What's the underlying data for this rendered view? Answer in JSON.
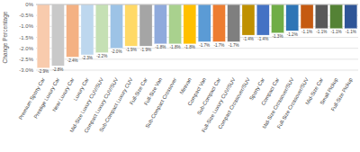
{
  "chart_data": {
    "type": "bar",
    "y_label": "Change Percentage",
    "categories": [
      "Premium Sporty Car",
      "Prestige Luxury Car",
      "Near Luxury Car",
      "Luxury Car",
      "Mid-Size Luxury CUV/SUV",
      "Compact Luxury CUV/SUV",
      "Sub-Compact Luxury CUV",
      "Full-Size Car",
      "Full-Size Van",
      "Sub-Compact Crossover",
      "Minivan",
      "Compact Van",
      "Sub-Compact Car",
      "Full-Size Luxury CUV/SUV",
      "Compact Crossover/SUV",
      "Sporty Car",
      "Compact Car",
      "Mid-Size Crossover/SUV",
      "Full-Size Crossover/SUV",
      "Mid-Size Car",
      "Small Pickup",
      "Full-Size Pickup"
    ],
    "values": [
      -2.9,
      -2.8,
      -2.4,
      -2.3,
      -2.2,
      -2.0,
      -1.9,
      -1.9,
      -1.8,
      -1.8,
      -1.8,
      -1.7,
      -1.7,
      -1.7,
      -1.4,
      -1.4,
      -1.3,
      -1.2,
      -1.1,
      -1.1,
      -1.1,
      -1.1
    ],
    "value_labels": [
      "-2.9%",
      "-2.8%",
      "-2.4%",
      "-2.3%",
      "-2.2%",
      "-2.0%",
      "-1.9%",
      "-1.9%",
      "-1.8%",
      "-1.8%",
      "-1.8%",
      "-1.7%",
      "-1.7%",
      "-1.7%",
      "-1.4%",
      "-1.4%",
      "-1.3%",
      "-1.2%",
      "-1.1%",
      "-1.1%",
      "-1.1%",
      "-1.1%"
    ],
    "colors": [
      "#f8cbad",
      "#c9c9c9",
      "#f4b183",
      "#bdd7ee",
      "#c5e0b4",
      "#9dc3e6",
      "#ffd966",
      "#a5a5a5",
      "#8faadc",
      "#a9d18e",
      "#ffc000",
      "#5b9bd5",
      "#ed7d31",
      "#7f7f7f",
      "#bf9000",
      "#4472c4",
      "#70ad47",
      "#2e75b6",
      "#c55a11",
      "#595959",
      "#548235",
      "#2f5597"
    ],
    "ylim": [
      -3.0,
      0
    ],
    "yticks": [
      {
        "value": 0,
        "label": "0%"
      },
      {
        "value": -0.5,
        "label": "-0.5%"
      },
      {
        "value": -1.0,
        "label": "-1.0%"
      },
      {
        "value": -1.5,
        "label": "-1.5%"
      },
      {
        "value": -2.0,
        "label": "-2.0%"
      },
      {
        "value": -2.5,
        "label": "-2.5%"
      },
      {
        "value": -3.0,
        "label": "-3.0%"
      }
    ],
    "grid": true,
    "data_labels": true
  }
}
